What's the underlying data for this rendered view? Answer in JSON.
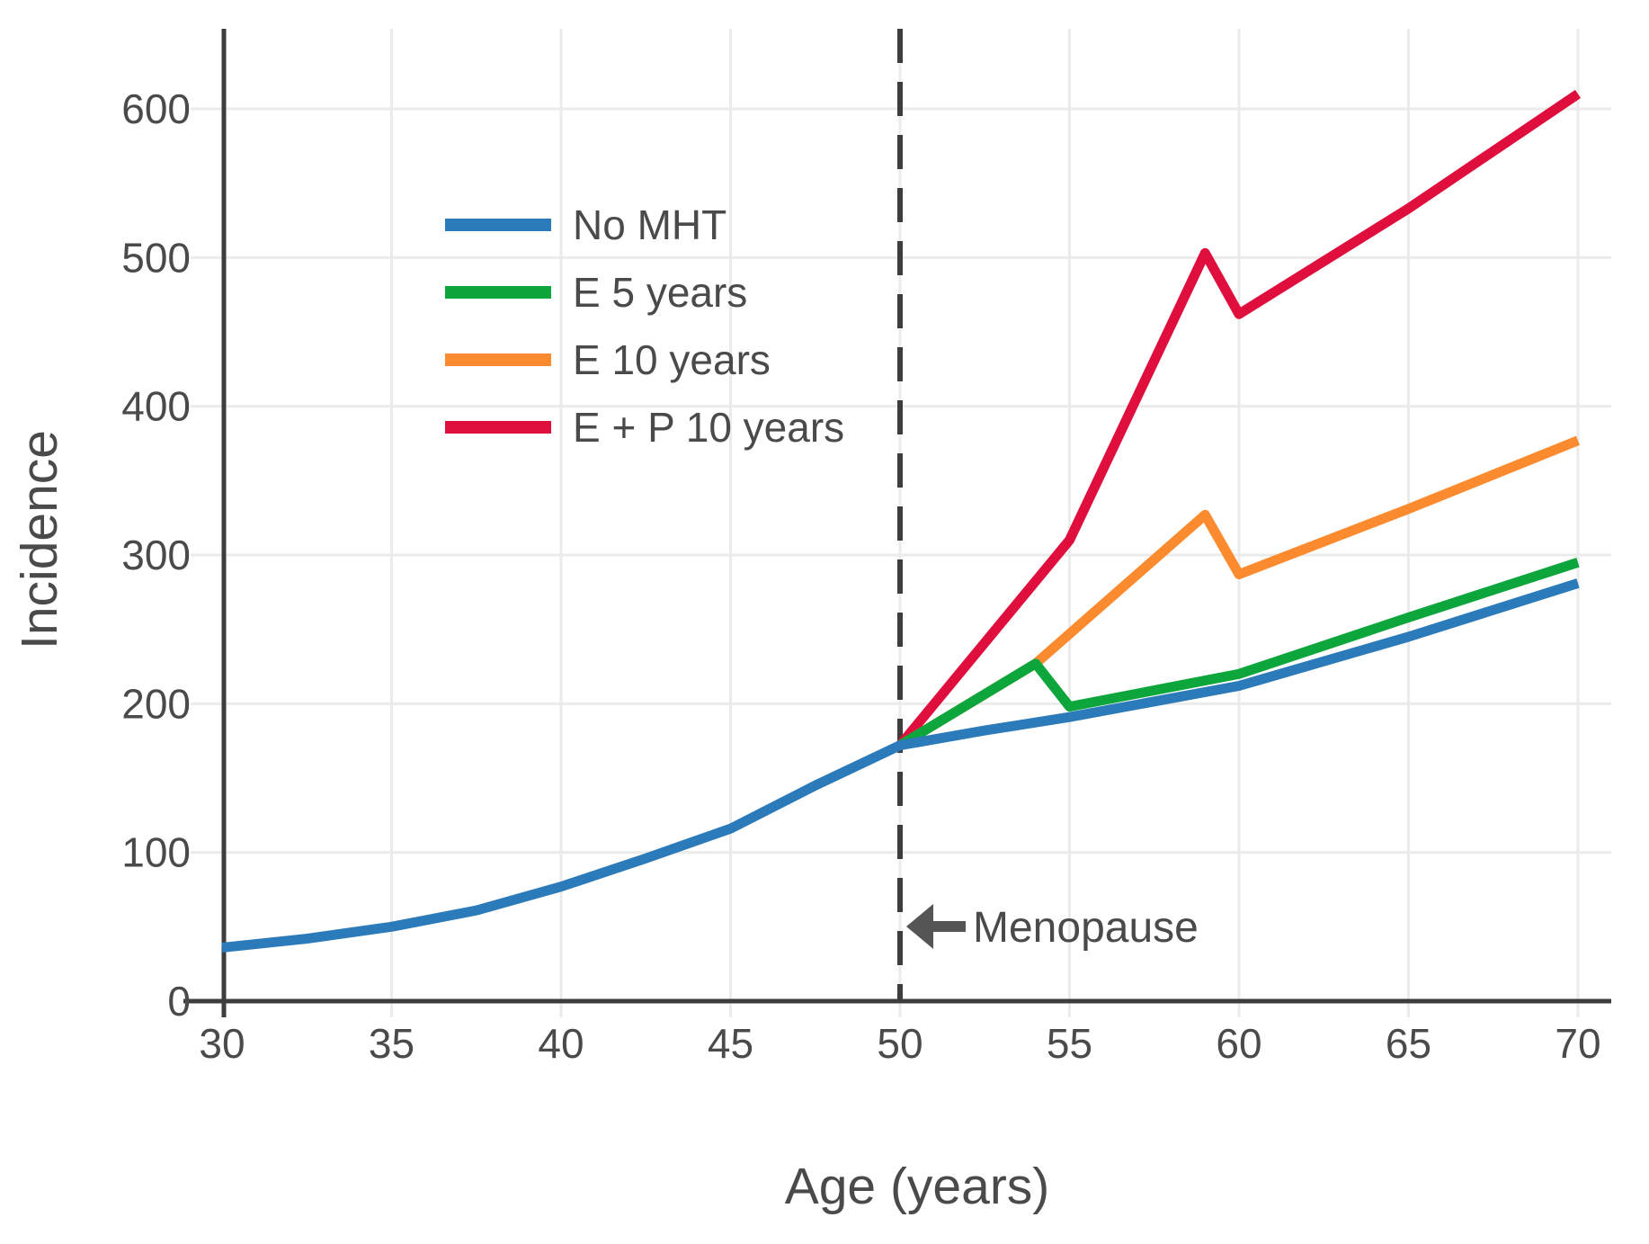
{
  "figure": {
    "background": "#ffffff",
    "axis_color": "#3d3d3d",
    "grid_color": "#ebebeb",
    "text_color": "#4a4a4a"
  },
  "legend": {
    "position": "upper-left-inside",
    "items": [
      {
        "label": "No MHT",
        "color": "#2b7ab9"
      },
      {
        "label": "E 5 years",
        "color": "#0da63c"
      },
      {
        "label": "E 10 years",
        "color": "#fb8b2e"
      },
      {
        "label": "E + P 10 years",
        "color": "#e00e3d"
      }
    ]
  },
  "chart_data": {
    "type": "line",
    "title": "",
    "xlabel": "Age (years)",
    "ylabel": "Incidence",
    "xlim": [
      30,
      71
    ],
    "ylim": [
      0,
      650
    ],
    "x_ticks": [
      30,
      35,
      40,
      45,
      50,
      55,
      60,
      65,
      70
    ],
    "y_ticks": [
      0,
      100,
      200,
      300,
      400,
      500,
      600
    ],
    "grid": true,
    "vline": {
      "x": 50,
      "style": "dashed",
      "label": "Menopause",
      "arrow": "left-arrow",
      "label_y": 50
    },
    "series": [
      {
        "name": "No MHT",
        "color": "#2b7ab9",
        "points": [
          [
            30,
            36
          ],
          [
            32.5,
            42
          ],
          [
            35,
            50
          ],
          [
            37.5,
            61
          ],
          [
            40,
            77
          ],
          [
            42.5,
            96
          ],
          [
            45,
            116
          ],
          [
            47.5,
            145
          ],
          [
            50,
            172
          ],
          [
            52.5,
            182
          ],
          [
            55,
            191
          ],
          [
            60,
            212
          ],
          [
            65,
            245
          ],
          [
            70,
            281
          ]
        ]
      },
      {
        "name": "E 5 years",
        "color": "#0da63c",
        "points": [
          [
            50,
            172
          ],
          [
            54,
            227
          ],
          [
            55,
            198
          ],
          [
            60,
            220
          ],
          [
            65,
            258
          ],
          [
            70,
            295
          ]
        ]
      },
      {
        "name": "E 10 years",
        "color": "#fb8b2e",
        "points": [
          [
            50,
            172
          ],
          [
            54,
            227
          ],
          [
            59,
            327
          ],
          [
            60,
            287
          ],
          [
            65,
            331
          ],
          [
            70,
            377
          ]
        ]
      },
      {
        "name": "E + P 10 years",
        "color": "#e00e3d",
        "points": [
          [
            50,
            172
          ],
          [
            55,
            310
          ],
          [
            59,
            503
          ],
          [
            60,
            462
          ],
          [
            65,
            533
          ],
          [
            70,
            610
          ]
        ]
      }
    ]
  }
}
